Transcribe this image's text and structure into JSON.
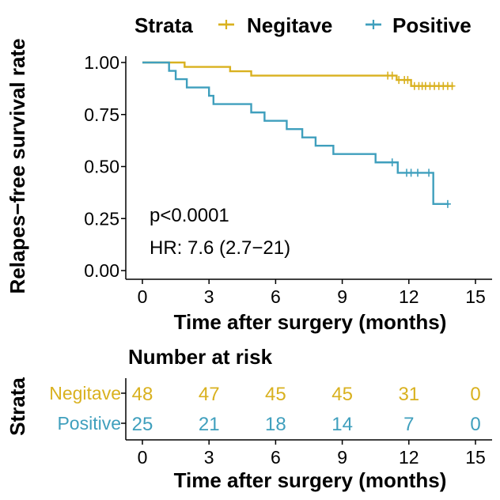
{
  "chart_data": [
    {
      "type": "line",
      "subtype": "kaplan-meier-step",
      "ylabel": "Relapes−free survival rate",
      "xlabel": "Time after surgery (months)",
      "xlim": [
        0,
        15
      ],
      "ylim": [
        0,
        1
      ],
      "x_ticks": [
        "0",
        "3",
        "6",
        "9",
        "12",
        "15"
      ],
      "y_ticks": [
        "0.00",
        "0.25",
        "0.50",
        "0.75",
        "1.00"
      ],
      "x_tick_values": [
        0,
        3,
        6,
        9,
        12,
        15
      ],
      "y_tick_values": [
        0,
        0.25,
        0.5,
        0.75,
        1.0
      ],
      "grid": false,
      "legend": {
        "title": "Strata",
        "placement": "top",
        "entries": [
          "Negitave",
          "Positive"
        ]
      },
      "annotations": [
        "p<0.0001",
        "HR: 7.6 (2.7−21)"
      ],
      "series": [
        {
          "name": "Negitave",
          "color": "#D9B11F",
          "steps": [
            [
              0,
              1.0
            ],
            [
              1.9,
              0.979
            ],
            [
              3.95,
              0.958
            ],
            [
              4.9,
              0.937
            ],
            [
              11.45,
              0.916
            ],
            [
              12.1,
              0.887
            ],
            [
              14.0,
              0.887
            ]
          ],
          "censor": [
            [
              11.05,
              0.937
            ],
            [
              11.25,
              0.937
            ],
            [
              11.55,
              0.916
            ],
            [
              11.8,
              0.916
            ],
            [
              11.95,
              0.916
            ],
            [
              12.25,
              0.887
            ],
            [
              12.45,
              0.887
            ],
            [
              12.6,
              0.887
            ],
            [
              12.75,
              0.887
            ],
            [
              12.95,
              0.887
            ],
            [
              13.15,
              0.887
            ],
            [
              13.35,
              0.887
            ],
            [
              13.55,
              0.887
            ],
            [
              13.75,
              0.887
            ],
            [
              13.95,
              0.887
            ]
          ]
        },
        {
          "name": "Positive",
          "color": "#3F9FBD",
          "steps": [
            [
              0,
              1.0
            ],
            [
              1.2,
              0.96
            ],
            [
              1.5,
              0.92
            ],
            [
              2.0,
              0.88
            ],
            [
              3.0,
              0.84
            ],
            [
              3.2,
              0.8
            ],
            [
              4.9,
              0.76
            ],
            [
              5.5,
              0.72
            ],
            [
              6.5,
              0.68
            ],
            [
              7.2,
              0.64
            ],
            [
              7.8,
              0.6
            ],
            [
              8.6,
              0.56
            ],
            [
              10.5,
              0.52
            ],
            [
              11.5,
              0.47
            ],
            [
              13.1,
              0.32
            ],
            [
              13.8,
              0.32
            ]
          ],
          "censor": [
            [
              11.25,
              0.52
            ],
            [
              11.9,
              0.47
            ],
            [
              12.1,
              0.47
            ],
            [
              12.4,
              0.47
            ],
            [
              12.9,
              0.47
            ],
            [
              13.75,
              0.32
            ]
          ]
        }
      ]
    },
    {
      "type": "table",
      "title": "Number at risk",
      "ylabel": "Strata",
      "xlabel": "Time after surgery (months)",
      "x_ticks": [
        "0",
        "3",
        "6",
        "9",
        "12",
        "15"
      ],
      "x_tick_values": [
        0,
        3,
        6,
        9,
        12,
        15
      ],
      "rows": [
        {
          "name": "Negitave",
          "color": "#D9B11F",
          "values": [
            "48",
            "47",
            "45",
            "45",
            "31",
            "0"
          ]
        },
        {
          "name": "Positive",
          "color": "#3F9FBD",
          "values": [
            "25",
            "21",
            "18",
            "14",
            "7",
            "0"
          ]
        }
      ]
    }
  ]
}
